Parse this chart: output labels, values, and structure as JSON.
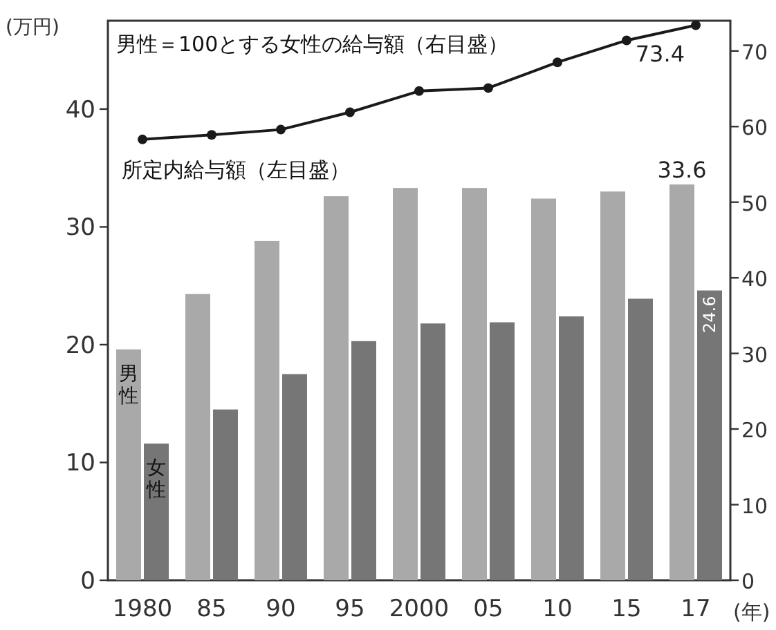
{
  "chart_data": {
    "type": "bar",
    "ylabel": "(万円)",
    "xlabel": "(年)",
    "categories": [
      "1980",
      "85",
      "90",
      "95",
      "2000",
      "05",
      "10",
      "15",
      "17"
    ],
    "series": [
      {
        "name": "男性",
        "color": "#a9a9a9",
        "values": [
          19.6,
          24.3,
          28.8,
          32.6,
          33.3,
          33.3,
          32.4,
          33.0,
          33.6
        ],
        "value_labels": [
          null,
          null,
          null,
          null,
          null,
          null,
          null,
          null,
          "33.6"
        ]
      },
      {
        "name": "女性",
        "color": "#767676",
        "values": [
          11.6,
          14.5,
          17.5,
          20.3,
          21.8,
          21.9,
          22.4,
          23.9,
          24.6
        ],
        "value_labels": [
          null,
          null,
          null,
          null,
          null,
          null,
          null,
          null,
          "24.6"
        ]
      },
      {
        "name": "男性＝100とする女性の給与額（右目盛）",
        "type": "line",
        "axis": "y2",
        "marker": "circle",
        "color": "#1a1a1a",
        "values": [
          58.3,
          58.9,
          59.6,
          61.9,
          64.7,
          65.1,
          68.5,
          71.4,
          73.4
        ],
        "value_labels": [
          null,
          null,
          null,
          null,
          null,
          null,
          null,
          null,
          "73.4"
        ]
      }
    ],
    "annotations": [
      "所定内給与額（左目盛）"
    ],
    "ylim": [
      0,
      47.5
    ],
    "yticks": [
      0,
      10,
      20,
      30,
      40
    ],
    "y2lim": [
      0,
      74
    ],
    "y2ticks": [
      0,
      10,
      20,
      30,
      40,
      50,
      60,
      70
    ]
  }
}
